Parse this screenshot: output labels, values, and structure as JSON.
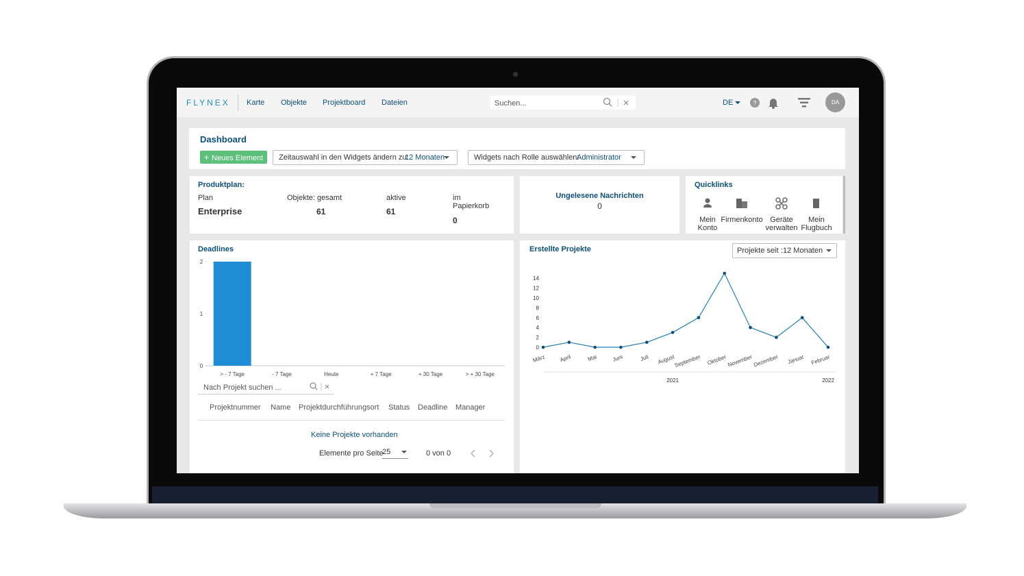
{
  "nav": {
    "logo": "FLYNEX",
    "links": [
      "Karte",
      "Objekte",
      "Projektboard",
      "Dateien"
    ],
    "search_placeholder": "Suchen...",
    "language": "DE",
    "avatar": "DA"
  },
  "dashboard": {
    "title": "Dashboard",
    "new_button": "Neues Element",
    "time_label": "Zeitauswahl in den Widgets ändern zu:",
    "time_value": "12 Monaten",
    "role_label": "Widgets nach Rolle auswählen:",
    "role_value": "Administrator"
  },
  "produktplan": {
    "title": "Produktplan:",
    "columns": [
      {
        "label": "Plan",
        "value": "Enterprise"
      },
      {
        "label": "Objekte: gesamt",
        "value": 61
      },
      {
        "label": "aktive",
        "value": 61
      },
      {
        "label": "im Papierkorb",
        "value": 0
      }
    ]
  },
  "nachrichten": {
    "title": "Ungelesene Nachrichten",
    "value": 0
  },
  "quicklinks": {
    "title": "Quicklinks",
    "items": [
      "Mein Konto",
      "Firmenkonto",
      "Geräte verwalten",
      "Mein Flugbuch"
    ]
  },
  "projects_table": {
    "search_placeholder": "Nach Projekt suchen ...",
    "columns": [
      "Projektnummer",
      "Name",
      "Projektdurchführungsort",
      "Status",
      "Deadline",
      "Manager"
    ],
    "empty": "Keine Projekte vorhanden",
    "per_page_label": "Elemente pro Seite",
    "per_page": 25,
    "range": "0 von 0"
  },
  "projects_filter": {
    "label": "Projekte seit :",
    "value": "12 Monaten"
  },
  "chart_data": [
    {
      "type": "bar",
      "title": "Deadlines",
      "categories": [
        "> - 7 Tage",
        "- 7 Tage",
        "Heute",
        "+ 7 Tage",
        "+ 30 Tage",
        "> + 30 Tage"
      ],
      "values": [
        2,
        0,
        0,
        0,
        0,
        0
      ],
      "color": "#1f8dd6",
      "ylim": [
        0,
        2
      ],
      "yticks": [
        0,
        1,
        2
      ]
    },
    {
      "type": "line",
      "title": "Erstellte Projekte",
      "categories": [
        "März",
        "April",
        "Mai",
        "Juni",
        "Juli",
        "August",
        "September",
        "Oktober",
        "November",
        "Dezember",
        "Januar",
        "Februar"
      ],
      "values": [
        0,
        1,
        0,
        0,
        1,
        3,
        6,
        15,
        4,
        2,
        6,
        0
      ],
      "color": "#1d7fb8",
      "ylim": [
        0,
        15
      ],
      "yticks": [
        0,
        2,
        4,
        6,
        8,
        10,
        12,
        14
      ],
      "year_labels": [
        "2021",
        "2022"
      ]
    }
  ]
}
